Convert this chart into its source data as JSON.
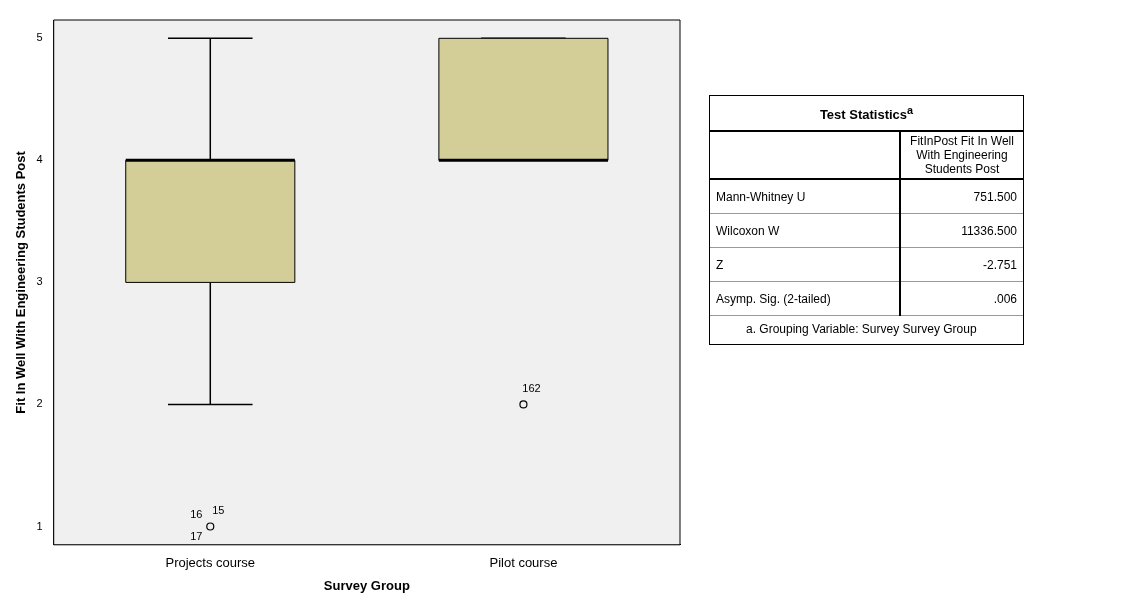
{
  "chart_data": [
    {
      "type": "box",
      "xlabel": "Survey Group",
      "ylabel": "Fit In Well With Engineering Students Post",
      "categories": [
        "Projects course",
        "Pilot course"
      ],
      "boxes": [
        {
          "low": 2,
          "q1": 3,
          "median": 4,
          "q3": 4,
          "high": 5,
          "outliers": [
            1
          ]
        },
        {
          "low": 4,
          "q1": 4,
          "median": 4,
          "q3": 5,
          "high": 5,
          "outliers": [
            2
          ]
        }
      ],
      "color": "#d3ce97",
      "ylim": [
        0.85,
        5.15
      ],
      "yticks": [
        1,
        2,
        3,
        4,
        5
      ],
      "grid": false,
      "legend": false,
      "marker": "circle",
      "annotations": [
        "16",
        "15",
        "17",
        "162"
      ]
    },
    {
      "type": "other",
      "title": "Test Statistics$^{a}$",
      "subtitle": "FitInPost Fit In Well With Engineering Students Post",
      "annotations": [
        "Mann-Whitney U",
        "751.500",
        "Wilcoxon W",
        "11336.500",
        "Z",
        "-2.751",
        "Asymp. Sig. (2-tailed)",
        ".006",
        "a. Grouping Variable: Survey Survey Group"
      ]
    }
  ]
}
